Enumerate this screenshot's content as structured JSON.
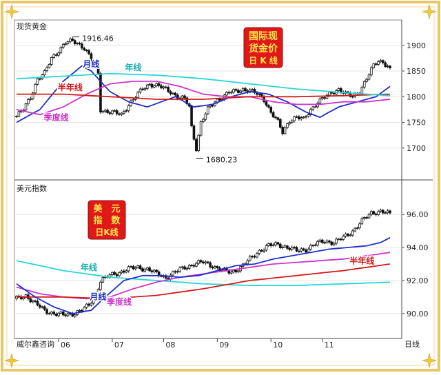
{
  "frame": {
    "border_color": "#e8c66a",
    "corner_star_color": "#f3c93a"
  },
  "footer": {
    "source": "威尔鑫咨询",
    "x_unit": "日线"
  },
  "x_axis": {
    "months": [
      "06",
      "07",
      "08",
      "09",
      "10",
      "11"
    ]
  },
  "chart_data": [
    {
      "type": "candlestick",
      "title": "现货黄金",
      "badge": [
        "国际现",
        "货金价",
        "日 K 线"
      ],
      "badge_colors": {
        "fill": "#e01818",
        "text": "#ffe84a"
      },
      "ylim": [
        1650,
        1940
      ],
      "yticks": [
        "1700",
        "1750",
        "1800",
        "1850",
        "1900"
      ],
      "candle_color": "#111111",
      "close_anchors": [
        [
          0,
          1762
        ],
        [
          3,
          1775
        ],
        [
          6,
          1800
        ],
        [
          9,
          1835
        ],
        [
          12,
          1845
        ],
        [
          15,
          1875
        ],
        [
          18,
          1890
        ],
        [
          21,
          1905
        ],
        [
          24,
          1908
        ],
        [
          26,
          1905
        ],
        [
          29,
          1895
        ],
        [
          31,
          1880
        ],
        [
          33,
          1860
        ],
        [
          35,
          1845
        ],
        [
          36,
          1775
        ],
        [
          40,
          1770
        ],
        [
          45,
          1765
        ],
        [
          48,
          1785
        ],
        [
          51,
          1800
        ],
        [
          54,
          1815
        ],
        [
          57,
          1825
        ],
        [
          60,
          1822
        ],
        [
          63,
          1816
        ],
        [
          66,
          1810
        ],
        [
          69,
          1800
        ],
        [
          72,
          1795
        ],
        [
          74,
          1780
        ],
        [
          75,
          1740
        ],
        [
          77,
          1700
        ],
        [
          79,
          1750
        ],
        [
          82,
          1775
        ],
        [
          85,
          1790
        ],
        [
          88,
          1800
        ],
        [
          91,
          1808
        ],
        [
          94,
          1810
        ],
        [
          97,
          1815
        ],
        [
          100,
          1812
        ],
        [
          103,
          1805
        ],
        [
          106,
          1795
        ],
        [
          109,
          1770
        ],
        [
          112,
          1750
        ],
        [
          114,
          1730
        ],
        [
          117,
          1755
        ],
        [
          120,
          1760
        ],
        [
          123,
          1755
        ],
        [
          126,
          1775
        ],
        [
          129,
          1790
        ],
        [
          132,
          1798
        ],
        [
          135,
          1808
        ],
        [
          138,
          1815
        ],
        [
          141,
          1805
        ],
        [
          144,
          1800
        ],
        [
          147,
          1812
        ],
        [
          150,
          1835
        ],
        [
          153,
          1860
        ],
        [
          155,
          1870
        ],
        [
          157,
          1868
        ],
        [
          159,
          1860
        ],
        [
          160,
          1852
        ]
      ],
      "extremes": [
        {
          "label": "1916.46",
          "value": 1916.46,
          "day": 24
        },
        {
          "label": "1680.23",
          "value": 1680.23,
          "day": 77
        }
      ],
      "series": [
        {
          "name": "月线",
          "color": "#1c2fc8",
          "label_color": "#1c2fc8",
          "points": [
            [
              0,
              1750
            ],
            [
              10,
              1775
            ],
            [
              20,
              1830
            ],
            [
              28,
              1860
            ],
            [
              32,
              1850
            ],
            [
              40,
              1810
            ],
            [
              48,
              1790
            ],
            [
              56,
              1780
            ],
            [
              62,
              1790
            ],
            [
              68,
              1800
            ],
            [
              76,
              1780
            ],
            [
              84,
              1785
            ],
            [
              92,
              1800
            ],
            [
              100,
              1810
            ],
            [
              108,
              1805
            ],
            [
              116,
              1790
            ],
            [
              124,
              1770
            ],
            [
              130,
              1760
            ],
            [
              138,
              1780
            ],
            [
              146,
              1790
            ],
            [
              154,
              1800
            ],
            [
              160,
              1820
            ]
          ]
        },
        {
          "name": "季度线",
          "color": "#cc33cc",
          "label_color": "#cc33cc",
          "points": [
            [
              0,
              1775
            ],
            [
              10,
              1765
            ],
            [
              20,
              1780
            ],
            [
              30,
              1805
            ],
            [
              40,
              1825
            ],
            [
              50,
              1830
            ],
            [
              60,
              1830
            ],
            [
              70,
              1820
            ],
            [
              80,
              1805
            ],
            [
              90,
              1800
            ],
            [
              100,
              1800
            ],
            [
              110,
              1790
            ],
            [
              120,
              1785
            ],
            [
              130,
              1785
            ],
            [
              140,
              1790
            ],
            [
              150,
              1790
            ],
            [
              160,
              1795
            ]
          ]
        },
        {
          "name": "半年线",
          "color": "#d21a1a",
          "label_color": "#d21a1a",
          "points": [
            [
              0,
              1805
            ],
            [
              20,
              1805
            ],
            [
              40,
              1800
            ],
            [
              60,
              1795
            ],
            [
              80,
              1795
            ],
            [
              100,
              1800
            ],
            [
              120,
              1800
            ],
            [
              140,
              1802
            ],
            [
              160,
              1805
            ]
          ]
        },
        {
          "name": "年线",
          "color": "#26d6d6",
          "label_color": "#16aeb0",
          "points": [
            [
              0,
              1835
            ],
            [
              20,
              1840
            ],
            [
              40,
              1845
            ],
            [
              60,
              1842
            ],
            [
              80,
              1835
            ],
            [
              100,
              1825
            ],
            [
              120,
              1815
            ],
            [
              140,
              1808
            ],
            [
              160,
              1802
            ]
          ]
        }
      ],
      "series_label_days": {
        "月线": 32,
        "季度线": 17,
        "半年线": 23,
        "年线": 50
      }
    },
    {
      "type": "candlestick",
      "title": "美元指数",
      "badge": [
        "美　元",
        "指　数",
        "日K线"
      ],
      "badge_colors": {
        "fill": "#e01818",
        "text": "#ffe84a"
      },
      "ylim": [
        88.7,
        97.8
      ],
      "yticks": [
        "90.00",
        "92.00",
        "94.00",
        "96.00"
      ],
      "candle_color": "#111111",
      "close_anchors": [
        [
          0,
          90.9
        ],
        [
          4,
          91.1
        ],
        [
          8,
          90.6
        ],
        [
          12,
          90.2
        ],
        [
          16,
          90.0
        ],
        [
          20,
          89.9
        ],
        [
          24,
          90.0
        ],
        [
          28,
          90.2
        ],
        [
          31,
          90.5
        ],
        [
          34,
          91.2
        ],
        [
          36,
          92.0
        ],
        [
          40,
          92.3
        ],
        [
          44,
          92.5
        ],
        [
          48,
          92.7
        ],
        [
          52,
          92.8
        ],
        [
          56,
          92.7
        ],
        [
          60,
          92.4
        ],
        [
          64,
          92.2
        ],
        [
          68,
          92.5
        ],
        [
          72,
          92.8
        ],
        [
          76,
          93.0
        ],
        [
          80,
          93.1
        ],
        [
          84,
          92.9
        ],
        [
          88,
          92.6
        ],
        [
          92,
          92.5
        ],
        [
          96,
          92.8
        ],
        [
          100,
          93.3
        ],
        [
          104,
          93.8
        ],
        [
          108,
          94.1
        ],
        [
          112,
          94.2
        ],
        [
          116,
          94.0
        ],
        [
          120,
          93.8
        ],
        [
          124,
          93.9
        ],
        [
          128,
          94.2
        ],
        [
          132,
          94.4
        ],
        [
          136,
          94.3
        ],
        [
          140,
          94.6
        ],
        [
          144,
          95.0
        ],
        [
          148,
          95.6
        ],
        [
          152,
          96.1
        ],
        [
          156,
          96.2
        ],
        [
          160,
          96.0
        ]
      ],
      "series": [
        {
          "name": "年线",
          "color": "#26d6d6",
          "label_color": "#16aeb0",
          "points": [
            [
              0,
              93.2
            ],
            [
              20,
              92.6
            ],
            [
              40,
              92.2
            ],
            [
              60,
              92.0
            ],
            [
              80,
              91.8
            ],
            [
              100,
              91.7
            ],
            [
              120,
              91.7
            ],
            [
              140,
              91.8
            ],
            [
              160,
              91.9
            ]
          ]
        },
        {
          "name": "季度线",
          "color": "#cc33cc",
          "label_color": "#cc33cc",
          "points": [
            [
              0,
              91.6
            ],
            [
              10,
              91.2
            ],
            [
              20,
              91.0
            ],
            [
              30,
              90.9
            ],
            [
              40,
              91.0
            ],
            [
              50,
              91.5
            ],
            [
              60,
              91.9
            ],
            [
              70,
              92.2
            ],
            [
              80,
              92.4
            ],
            [
              90,
              92.6
            ],
            [
              100,
              92.8
            ],
            [
              110,
              93.0
            ],
            [
              120,
              93.1
            ],
            [
              130,
              93.2
            ],
            [
              140,
              93.3
            ],
            [
              150,
              93.5
            ],
            [
              160,
              93.7
            ]
          ]
        },
        {
          "name": "半年线",
          "color": "#d21a1a",
          "label_color": "#d21a1a",
          "points": [
            [
              0,
              91.0
            ],
            [
              20,
              91.0
            ],
            [
              40,
              90.9
            ],
            [
              60,
              91.1
            ],
            [
              80,
              91.5
            ],
            [
              100,
              92.0
            ],
            [
              120,
              92.3
            ],
            [
              140,
              92.6
            ],
            [
              160,
              93.0
            ]
          ]
        },
        {
          "name": "月线",
          "color": "#1c2fc8",
          "label_color": "#1c2fc8",
          "points": [
            [
              0,
              91.8
            ],
            [
              8,
              91.0
            ],
            [
              16,
              90.4
            ],
            [
              24,
              90.0
            ],
            [
              32,
              90.2
            ],
            [
              38,
              91.0
            ],
            [
              46,
              92.0
            ],
            [
              54,
              92.3
            ],
            [
              62,
              92.3
            ],
            [
              70,
              92.2
            ],
            [
              78,
              92.3
            ],
            [
              86,
              92.6
            ],
            [
              94,
              92.9
            ],
            [
              102,
              93.0
            ],
            [
              110,
              93.3
            ],
            [
              118,
              93.5
            ],
            [
              126,
              93.7
            ],
            [
              134,
              93.9
            ],
            [
              142,
              94.0
            ],
            [
              150,
              94.1
            ],
            [
              156,
              94.3
            ],
            [
              160,
              94.6
            ]
          ]
        }
      ],
      "series_label_days": {
        "年线": 31,
        "季度线": 44,
        "半年线": 148,
        "月线": 35
      }
    }
  ]
}
